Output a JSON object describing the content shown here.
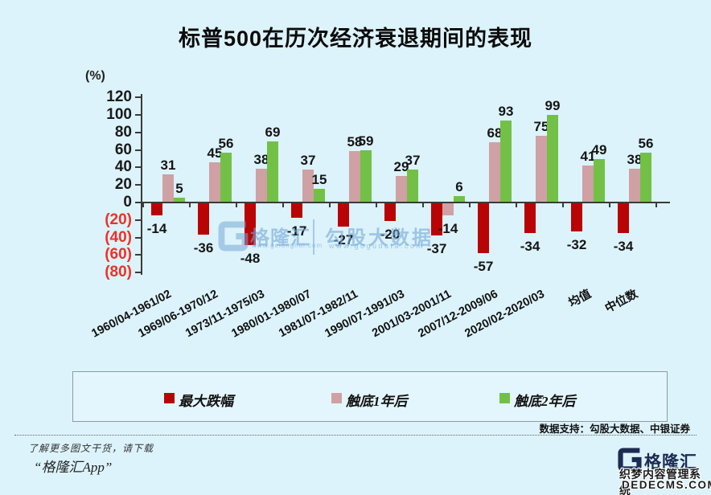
{
  "title": "标普500在历次经济衰退期间的表现",
  "chart_data": {
    "type": "bar",
    "unit_label": "(%)",
    "categories": [
      "1960/04-1961/02",
      "1969/06-1970/12",
      "1973/11-1975/03",
      "1980/01-1980/07",
      "1981/07-1982/11",
      "1990/07-1991/03",
      "2001/03-2001/11",
      "2007/12-2009/06",
      "2020/02-2020/03",
      "均值",
      "中位数"
    ],
    "series": [
      {
        "name": "最大跌幅",
        "color_key": "max_drawdown",
        "values": [
          -14,
          -36,
          -48,
          -17,
          -27,
          -20,
          -37,
          -57,
          -34,
          -32,
          -34
        ]
      },
      {
        "name": "触底1年后",
        "color_key": "one_year_after",
        "values": [
          31,
          45,
          38,
          37,
          58,
          29,
          -14,
          68,
          75,
          41,
          38
        ]
      },
      {
        "name": "触底2年后",
        "color_key": "two_years_after",
        "values": [
          5,
          56,
          69,
          15,
          59,
          37,
          6,
          93,
          99,
          49,
          56
        ]
      }
    ],
    "yticks": [
      120,
      100,
      80,
      60,
      40,
      20,
      0,
      -20,
      -40,
      -60,
      -80
    ],
    "ylim": [
      -80,
      120
    ],
    "grid": false,
    "legend_position": "bottom",
    "negative_tick_format": "parentheses-red"
  },
  "colors": {
    "max_drawdown": "#B80404",
    "one_year_after": "#CFA0A4",
    "two_years_after": "#72C146",
    "negative_tick": "#EE3124",
    "background": "#DCF3FB",
    "axis": "#3a3a3a",
    "brand_navy": "#1B2B52"
  },
  "watermark_center": {
    "brand": "格隆汇",
    "brand_url": "www.gelonghui.com",
    "data_brand": "勾股大数据",
    "data_url": "www.gogudata.com"
  },
  "source_note": "数据支持：勾股大数据、中银证券",
  "footer": {
    "promo_line": "了解更多图文干货，请下载",
    "app_line": "“格隆汇App”",
    "brand": "格隆汇",
    "cms_watermark_line1": "织梦内容管理系统",
    "cms_watermark_line2": "DEDECMS.COM"
  }
}
